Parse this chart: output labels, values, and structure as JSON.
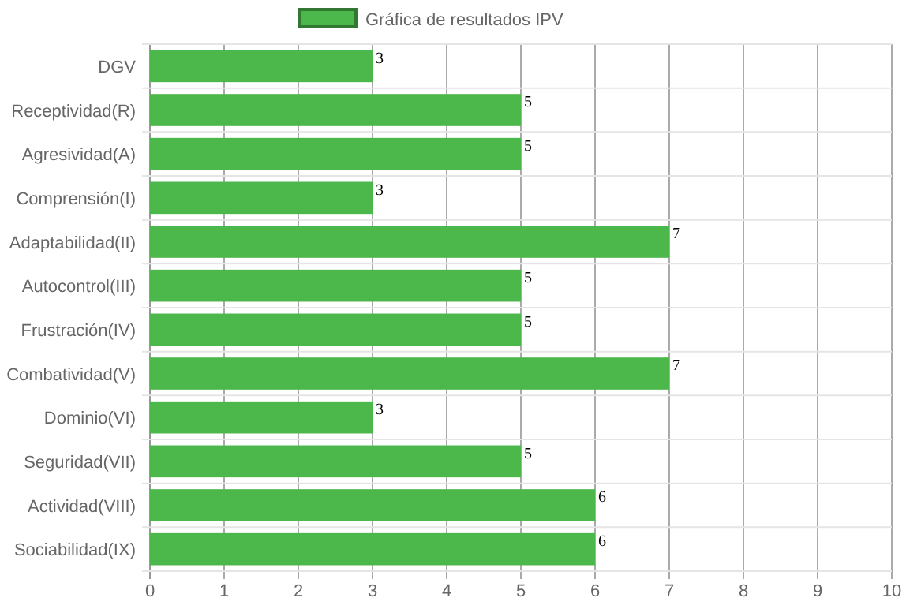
{
  "chart_data": {
    "type": "bar",
    "orientation": "horizontal",
    "categories": [
      "DGV",
      "Receptividad(R)",
      "Agresividad(A)",
      "Comprensión(I)",
      "Adaptabilidad(II)",
      "Autocontrol(III)",
      "Frustración(IV)",
      "Combatividad(V)",
      "Dominio(VI)",
      "Seguridad(VII)",
      "Actividad(VIII)",
      "Sociabilidad(IX)"
    ],
    "series": [
      {
        "name": "Gráfica de resultados IPV",
        "color": "#4cb84c",
        "values": [
          3,
          5,
          5,
          3,
          7,
          5,
          5,
          7,
          3,
          5,
          6,
          6
        ]
      }
    ],
    "xlim": [
      0,
      10
    ],
    "xticks": [
      0,
      1,
      2,
      3,
      4,
      5,
      6,
      7,
      8,
      9,
      10
    ],
    "grid": true,
    "legend": "top",
    "data_labels": true
  }
}
